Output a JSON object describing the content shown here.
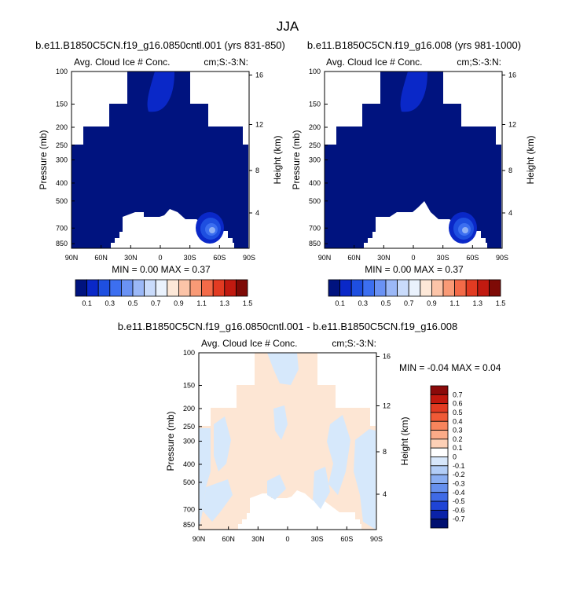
{
  "figure": {
    "title": "JJA"
  },
  "colors": {
    "field_navy": "#00137f",
    "field_blue": "#0a28c8",
    "field_mid": "#1e4fe0",
    "field_light": "#3c6ff0",
    "field_pale": "#8fb0f5",
    "diff_blue": "#d6e8fb",
    "diff_peach": "#fde6d4"
  },
  "chart_data": [
    {
      "type": "heatmap",
      "panel": "left",
      "title": "b.e11.B1850C5CN.f19_g16.0850cntl.001 (yrs 831-850)",
      "left_label": "Avg. Cloud Ice # Conc.",
      "right_label": "cm;S:-3:N:",
      "xlabel": "",
      "ylabel": "Pressure (mb)",
      "ylabel_right": "Height (km)",
      "x_ticks": [
        "90N",
        "60N",
        "30N",
        "0",
        "30S",
        "60S",
        "90S"
      ],
      "x_values": [
        90,
        60,
        30,
        0,
        -30,
        -60,
        -90
      ],
      "y_ticks": [
        "100",
        "150",
        "200",
        "250",
        "300",
        "400",
        "500",
        "700",
        "850"
      ],
      "y_values": [
        100,
        150,
        200,
        250,
        300,
        400,
        500,
        700,
        850
      ],
      "y_right_ticks": [
        "16",
        "12",
        "8",
        "4"
      ],
      "ylim": [
        100,
        900
      ],
      "stats": "MIN =   0.00   MAX =   0.37",
      "min": 0.0,
      "max": 0.37,
      "colorbar_labels": [
        "0.1",
        "0.3",
        "0.5",
        "0.7",
        "0.9",
        "1.1",
        "1.3",
        "1.5"
      ],
      "colorbar_colors": [
        "#00137f",
        "#0a28c8",
        "#1e4fe0",
        "#3c6ff0",
        "#6a92f4",
        "#9bb8f7",
        "#c9dbfb",
        "#eaf2fd",
        "#fde8d8",
        "#fcc4a8",
        "#f99a76",
        "#f36a48",
        "#e23b22",
        "#c11a10",
        "#7e0a06"
      ]
    },
    {
      "type": "heatmap",
      "panel": "right",
      "title": "b.e11.B1850C5CN.f19_g16.008 (yrs 981-1000)",
      "left_label": "Avg. Cloud Ice # Conc.",
      "right_label": "cm;S:-3:N:",
      "xlabel": "",
      "ylabel": "Pressure (mb)",
      "ylabel_right": "Height (km)",
      "x_ticks": [
        "90N",
        "60N",
        "30N",
        "0",
        "30S",
        "60S",
        "90S"
      ],
      "x_values": [
        90,
        60,
        30,
        0,
        -30,
        -60,
        -90
      ],
      "y_ticks": [
        "100",
        "150",
        "200",
        "250",
        "300",
        "400",
        "500",
        "700",
        "850"
      ],
      "y_values": [
        100,
        150,
        200,
        250,
        300,
        400,
        500,
        700,
        850
      ],
      "y_right_ticks": [
        "16",
        "12",
        "8",
        "4"
      ],
      "ylim": [
        100,
        900
      ],
      "stats": "MIN =   0.00   MAX =   0.37",
      "min": 0.0,
      "max": 0.37,
      "colorbar_labels": [
        "0.1",
        "0.3",
        "0.5",
        "0.7",
        "0.9",
        "1.1",
        "1.3",
        "1.5"
      ],
      "colorbar_colors": [
        "#00137f",
        "#0a28c8",
        "#1e4fe0",
        "#3c6ff0",
        "#6a92f4",
        "#9bb8f7",
        "#c9dbfb",
        "#eaf2fd",
        "#fde8d8",
        "#fcc4a8",
        "#f99a76",
        "#f36a48",
        "#e23b22",
        "#c11a10",
        "#7e0a06"
      ]
    },
    {
      "type": "heatmap",
      "panel": "difference",
      "title": "b.e11.B1850C5CN.f19_g16.0850cntl.001 - b.e11.B1850C5CN.f19_g16.008",
      "left_label": "Avg. Cloud Ice # Conc.",
      "right_label": "cm;S:-3:N:",
      "xlabel": "",
      "ylabel": "Pressure (mb)",
      "ylabel_right": "Height (km)",
      "x_ticks": [
        "90N",
        "60N",
        "30N",
        "0",
        "30S",
        "60S",
        "90S"
      ],
      "x_values": [
        90,
        60,
        30,
        0,
        -30,
        -60,
        -90
      ],
      "y_ticks": [
        "100",
        "150",
        "200",
        "250",
        "300",
        "400",
        "500",
        "700",
        "850"
      ],
      "y_values": [
        100,
        150,
        200,
        250,
        300,
        400,
        500,
        700,
        850
      ],
      "y_right_ticks": [
        "16",
        "12",
        "8",
        "4"
      ],
      "ylim": [
        100,
        900
      ],
      "stats": "MIN =  -0.04   MAX =   0.04",
      "min": -0.04,
      "max": 0.04,
      "colorbar_labels": [
        "0.7",
        "0.6",
        "0.5",
        "0.4",
        "0.3",
        "0.2",
        "0.1",
        "0",
        "-0.1",
        "-0.2",
        "-0.3",
        "-0.4",
        "-0.5",
        "-0.6",
        "-0.7"
      ],
      "colorbar_colors": [
        "#8b0a0a",
        "#c0180e",
        "#e23b22",
        "#f05a36",
        "#f7845c",
        "#fbab88",
        "#fdd0b6",
        "#ffffff",
        "#d7e7fb",
        "#b2cdf7",
        "#8aaef2",
        "#6690ee",
        "#3f6ae6",
        "#1f44d6",
        "#0a22a8",
        "#001070"
      ]
    }
  ]
}
